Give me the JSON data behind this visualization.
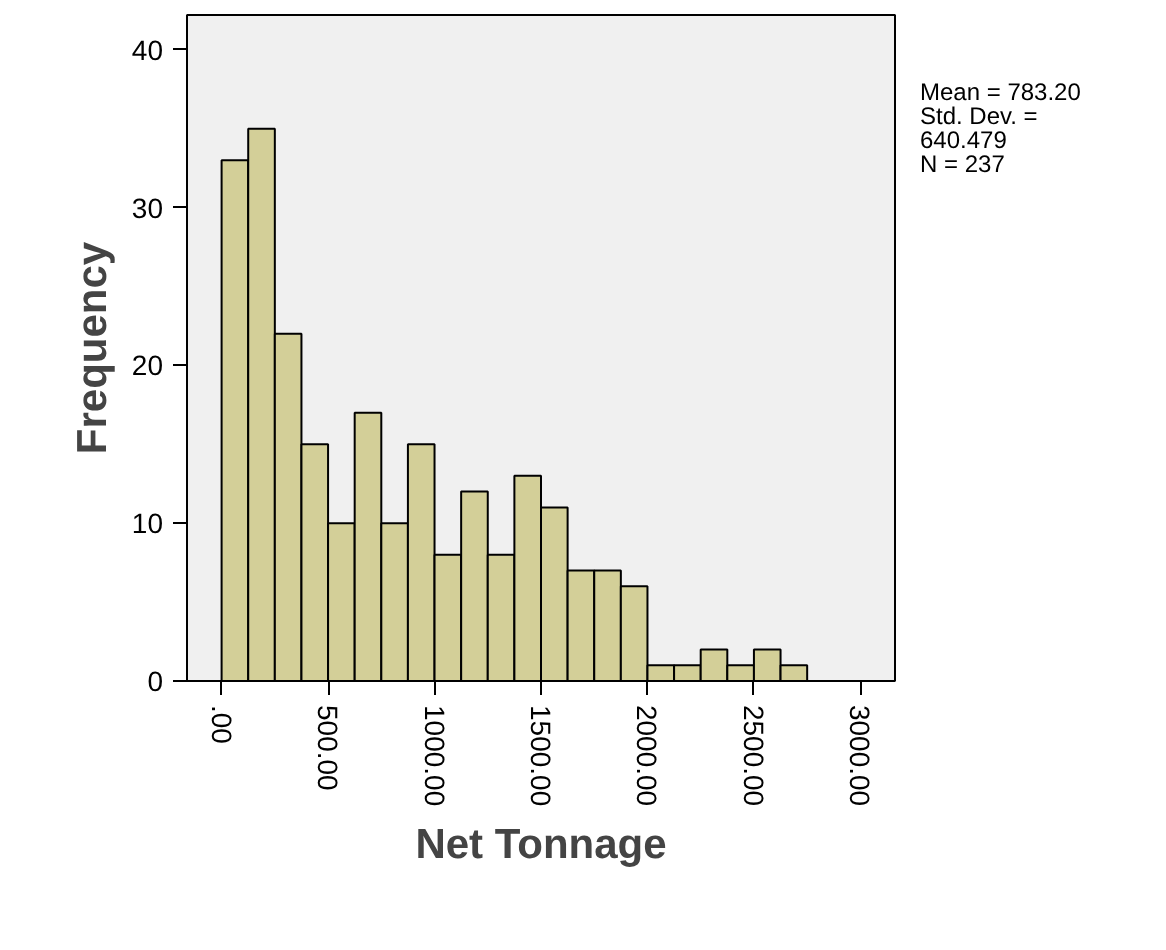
{
  "chart_data": {
    "type": "histogram",
    "xlabel": "Net Tonnage",
    "ylabel": "Frequency",
    "bins": [
      0,
      125,
      250,
      375,
      500,
      625,
      750,
      875,
      1000,
      1125,
      1250,
      1375,
      1500,
      1625,
      1750,
      1875,
      2000,
      2125,
      2250,
      2375,
      2500,
      2625,
      2750
    ],
    "values": [
      33,
      35,
      22,
      15,
      10,
      17,
      10,
      15,
      8,
      12,
      8,
      13,
      11,
      7,
      7,
      6,
      1,
      1,
      2,
      1,
      2,
      1
    ],
    "color": "#d3cf98",
    "xlim": [
      -162.5,
      3162.5
    ],
    "ylim": [
      0,
      42.2
    ],
    "xticks": [
      {
        "value": 0,
        "label": ".00"
      },
      {
        "value": 500,
        "label": "500.00"
      },
      {
        "value": 1000,
        "label": "1000.00"
      },
      {
        "value": 1500,
        "label": "1500.00"
      },
      {
        "value": 2000,
        "label": "2000.00"
      },
      {
        "value": 2500,
        "label": "2500.00"
      },
      {
        "value": 3000,
        "label": "3000.00"
      }
    ],
    "yticks": [
      0,
      10,
      20,
      30,
      40
    ],
    "grid": false,
    "annotations": [
      "Mean = 783.20",
      "Std. Dev. = 640.479",
      "N = 237"
    ]
  }
}
